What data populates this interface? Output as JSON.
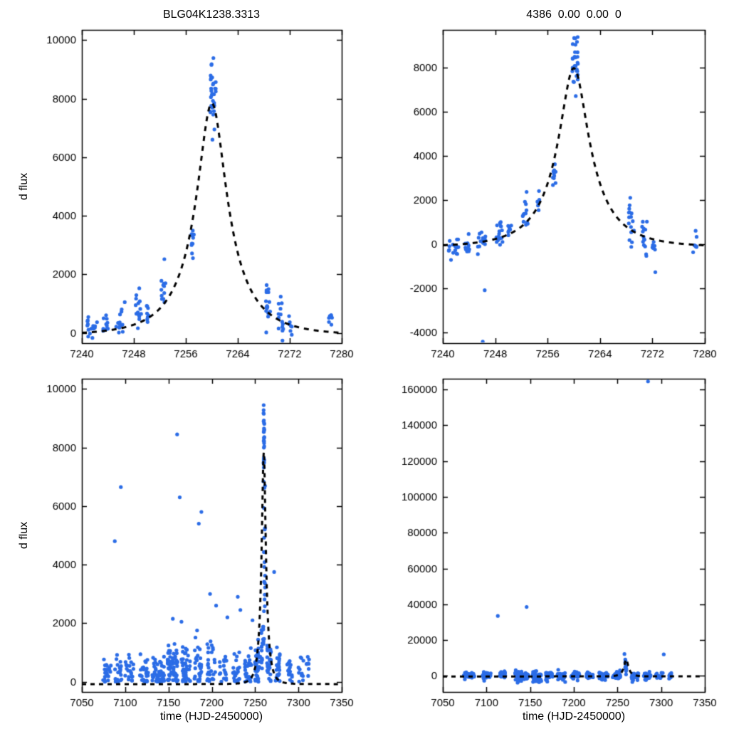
{
  "page": {
    "background": "#ffffff",
    "frame_color": "#000000",
    "tick_label_color": "#000000"
  },
  "chart_data": [
    {
      "type": "scatter",
      "title": "BLG04K1238.3313",
      "xlabel": "",
      "ylabel": "d flux",
      "xlim": [
        7240,
        7280
      ],
      "ylim": [
        -350,
        10350
      ],
      "xticks": [
        7240,
        7248,
        7256,
        7264,
        7272,
        7280
      ],
      "yticks": [
        0,
        2000,
        4000,
        6000,
        8000,
        10000
      ],
      "grid": false,
      "legend": "none",
      "point_color": "#2b6ce6",
      "curve": {
        "type": "paczynski",
        "t0": 7260,
        "tE": 7.6,
        "u0": 0.3,
        "fs": 3240,
        "base": -80,
        "color": "#000000",
        "dash": [
          7,
          7
        ],
        "width": 3
      },
      "seed": 101,
      "floor": false,
      "clusters": [
        [
          7241.6,
          1.6,
          16,
          230,
          230
        ],
        [
          7243.6,
          0.9,
          10,
          300,
          240
        ],
        [
          7245.7,
          1.2,
          12,
          420,
          300
        ],
        [
          7248.6,
          1.1,
          14,
          800,
          420
        ],
        [
          7250.1,
          0.5,
          8,
          650,
          300
        ],
        [
          7252.6,
          0.8,
          12,
          1500,
          420
        ],
        [
          7257.0,
          0.5,
          10,
          3200,
          420
        ],
        [
          7260.2,
          0.9,
          28,
          8400,
          750
        ],
        [
          7268.6,
          0.8,
          16,
          950,
          600
        ],
        [
          7270.6,
          0.8,
          14,
          550,
          420
        ],
        [
          7272.1,
          0.5,
          8,
          300,
          260
        ],
        [
          7278.3,
          0.6,
          7,
          430,
          200
        ]
      ],
      "points": [
        [
          7260.1,
          6600
        ],
        [
          7260.4,
          6950
        ],
        [
          7246.6,
          1050
        ]
      ]
    },
    {
      "type": "scatter",
      "title": "4386  0.00  0.00  0",
      "xlabel": "",
      "ylabel": "",
      "xlim": [
        7240,
        7280
      ],
      "ylim": [
        -4500,
        9700
      ],
      "xticks": [
        7240,
        7248,
        7256,
        7264,
        7272,
        7280
      ],
      "yticks": [
        -4000,
        -2000,
        0,
        2000,
        4000,
        6000,
        8000
      ],
      "grid": false,
      "legend": "none",
      "point_color": "#2b6ce6",
      "curve": {
        "type": "paczynski",
        "t0": 7260,
        "tE": 7.6,
        "u0": 0.3,
        "fs": 3320,
        "base": -150,
        "color": "#000000",
        "dash": [
          7,
          7
        ],
        "width": 3
      },
      "seed": 102,
      "floor": false,
      "clusters": [
        [
          7241.6,
          1.6,
          18,
          -120,
          340
        ],
        [
          7243.6,
          0.9,
          12,
          -160,
          300
        ],
        [
          7245.8,
          1.4,
          14,
          150,
          430
        ],
        [
          7248.7,
          1.1,
          16,
          700,
          450
        ],
        [
          7250.2,
          0.5,
          8,
          500,
          350
        ],
        [
          7252.6,
          0.8,
          12,
          1300,
          500
        ],
        [
          7254.6,
          0.4,
          6,
          1900,
          350
        ],
        [
          7257.0,
          0.5,
          10,
          3100,
          400
        ],
        [
          7260.2,
          0.9,
          28,
          8400,
          850
        ],
        [
          7268.8,
          0.8,
          16,
          850,
          700
        ],
        [
          7270.8,
          0.8,
          14,
          250,
          600
        ],
        [
          7272.2,
          0.5,
          8,
          -350,
          500
        ],
        [
          7278.5,
          0.6,
          7,
          150,
          500
        ]
      ],
      "points": [
        [
          7246.4,
          -2100
        ],
        [
          7246.1,
          -4430
        ],
        [
          7260.3,
          6700
        ]
      ]
    },
    {
      "type": "scatter",
      "title": "",
      "xlabel": "time (HJD-2450000)",
      "ylabel": "d flux",
      "xlim": [
        7050,
        7350
      ],
      "ylim": [
        -350,
        10350
      ],
      "xticks": [
        7050,
        7100,
        7150,
        7200,
        7250,
        7300,
        7350
      ],
      "yticks": [
        0,
        2000,
        4000,
        6000,
        8000,
        10000
      ],
      "grid": false,
      "legend": "none",
      "point_color": "#2b6ce6",
      "curve": {
        "type": "paczynski",
        "t0": 7260,
        "tE": 7.6,
        "u0": 0.3,
        "fs": 3240,
        "base": -80,
        "color": "#000000",
        "dash": [
          6,
          6
        ],
        "width": 3
      },
      "seed": 103,
      "floor": true,
      "clusters": [
        [
          7079,
          10,
          22,
          250,
          320
        ],
        [
          7092,
          8,
          20,
          350,
          420
        ],
        [
          7105,
          10,
          22,
          350,
          400
        ],
        [
          7122,
          10,
          28,
          300,
          380
        ],
        [
          7138,
          14,
          55,
          250,
          350
        ],
        [
          7155,
          12,
          60,
          450,
          520
        ],
        [
          7170,
          10,
          40,
          400,
          480
        ],
        [
          7184,
          8,
          28,
          550,
          650
        ],
        [
          7199,
          10,
          28,
          600,
          700
        ],
        [
          7213,
          8,
          18,
          350,
          400
        ],
        [
          7228,
          8,
          22,
          400,
          450
        ],
        [
          7242,
          8,
          30,
          400,
          450
        ],
        [
          7253,
          6,
          35,
          550,
          550
        ],
        [
          7258.5,
          2.5,
          18,
          1300,
          800
        ],
        [
          7260.2,
          1.0,
          30,
          8300,
          850
        ],
        [
          7260.8,
          1.5,
          20,
          4200,
          1900
        ],
        [
          7266,
          5,
          25,
          700,
          550
        ],
        [
          7276,
          6,
          25,
          450,
          420
        ],
        [
          7290,
          7,
          18,
          350,
          330
        ],
        [
          7303,
          6,
          12,
          300,
          300
        ],
        [
          7311,
          4,
          8,
          450,
          380
        ]
      ],
      "points": [
        [
          7088,
          4800
        ],
        [
          7095,
          6650
        ],
        [
          7160,
          8450
        ],
        [
          7163,
          6300
        ],
        [
          7185,
          5400
        ],
        [
          7188,
          5800
        ],
        [
          7198,
          3000
        ],
        [
          7205,
          2600
        ],
        [
          7230,
          2900
        ],
        [
          7233,
          2450
        ],
        [
          7272,
          3750
        ],
        [
          7247,
          2100
        ],
        [
          7155,
          2150
        ],
        [
          7165,
          2050
        ],
        [
          7218,
          2200
        ]
      ]
    },
    {
      "type": "scatter",
      "title": "",
      "xlabel": "time (HJD-2450000)",
      "ylabel": "",
      "xlim": [
        7050,
        7350
      ],
      "ylim": [
        -9000,
        166000
      ],
      "xticks": [
        7050,
        7100,
        7150,
        7200,
        7250,
        7300,
        7350
      ],
      "yticks": [
        0,
        20000,
        40000,
        60000,
        80000,
        100000,
        120000,
        140000,
        160000
      ],
      "grid": false,
      "legend": "none",
      "point_color": "#2b6ce6",
      "curve": {
        "type": "paczynski",
        "t0": 7260,
        "tE": 7.6,
        "u0": 0.3,
        "fs": 3900,
        "base": -300,
        "color": "#000000",
        "dash": [
          6,
          6
        ],
        "width": 3
      },
      "seed": 104,
      "floor": false,
      "clusters": [
        [
          7080,
          12,
          28,
          0,
          1300
        ],
        [
          7100,
          10,
          22,
          0,
          1300
        ],
        [
          7118,
          8,
          18,
          0,
          1300
        ],
        [
          7140,
          16,
          60,
          -300,
          1900
        ],
        [
          7158,
          10,
          45,
          -600,
          2600
        ],
        [
          7172,
          8,
          30,
          0,
          1600
        ],
        [
          7186,
          10,
          30,
          0,
          1600
        ],
        [
          7202,
          10,
          30,
          0,
          1600
        ],
        [
          7218,
          8,
          22,
          0,
          1500
        ],
        [
          7234,
          10,
          30,
          0,
          1600
        ],
        [
          7249,
          9,
          35,
          300,
          1600
        ],
        [
          7259.5,
          1.5,
          14,
          5500,
          2800
        ],
        [
          7270,
          8,
          30,
          0,
          1600
        ],
        [
          7284,
          8,
          22,
          0,
          1400
        ],
        [
          7298,
          8,
          16,
          0,
          1300
        ],
        [
          7310,
          4,
          8,
          0,
          1300
        ]
      ],
      "points": [
        [
          7113,
          33500
        ],
        [
          7146,
          38500
        ],
        [
          7285,
          164500
        ],
        [
          7258,
          12200
        ],
        [
          7303,
          12000
        ]
      ]
    }
  ]
}
